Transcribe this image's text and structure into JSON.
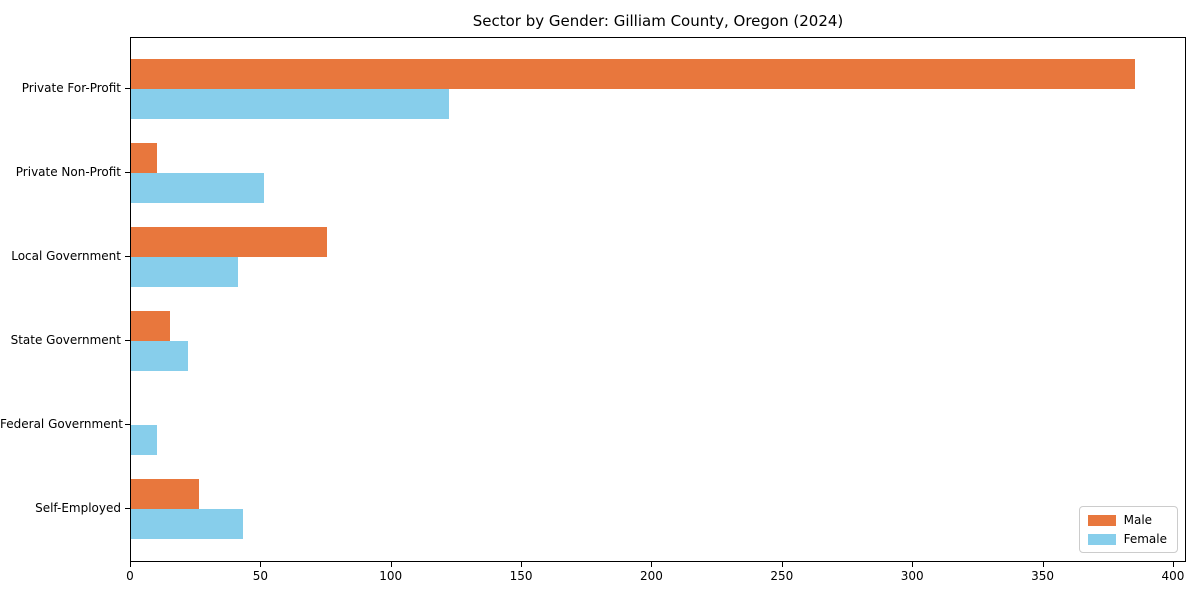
{
  "chart_data": {
    "type": "bar",
    "orientation": "horizontal",
    "title": "Sector by Gender: Gilliam County, Oregon (2024)",
    "categories": [
      "Private For-Profit",
      "Private Non-Profit",
      "Local Government",
      "State Government",
      "Federal Government",
      "Self-Employed"
    ],
    "series": [
      {
        "name": "Male",
        "color": "#e8773d",
        "values": [
          385,
          10,
          75,
          15,
          0,
          26
        ]
      },
      {
        "name": "Female",
        "color": "#87ceeb",
        "values": [
          122,
          51,
          41,
          22,
          10,
          43
        ]
      }
    ],
    "xlabel": "",
    "ylabel": "",
    "xlim": [
      0,
      405
    ],
    "x_ticks": [
      0,
      50,
      100,
      150,
      200,
      250,
      300,
      350,
      400
    ],
    "grid": false,
    "legend_position": "lower right"
  }
}
